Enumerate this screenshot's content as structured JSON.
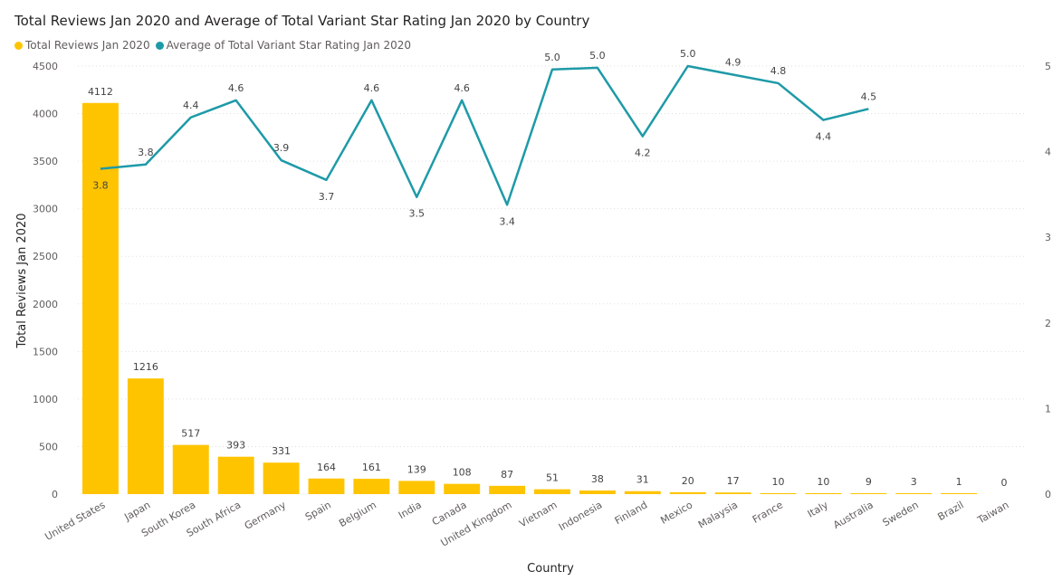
{
  "chart_data": {
    "type": "bar",
    "title": "Total Reviews Jan 2020 and Average of Total Variant Star Rating Jan 2020 by Country",
    "xlabel": "Country",
    "ylabel": "Total Reviews Jan 2020",
    "ylim": [
      0,
      4500
    ],
    "y2lim": [
      0,
      5
    ],
    "yticks": [
      0,
      500,
      1000,
      1500,
      2000,
      2500,
      3000,
      3500,
      4000,
      4500
    ],
    "y2ticks": [
      0,
      1,
      2,
      3,
      4,
      5
    ],
    "legend_position": "top-left",
    "grid": true,
    "categories": [
      "United States",
      "Japan",
      "South Korea",
      "South Africa",
      "Germany",
      "Spain",
      "Belgium",
      "India",
      "Canada",
      "United Kingdom",
      "Vietnam",
      "Indonesia",
      "Finland",
      "Mexico",
      "Malaysia",
      "France",
      "Italy",
      "Australia",
      "Sweden",
      "Brazil",
      "Taiwan"
    ],
    "series": [
      {
        "name": "Total Reviews Jan 2020",
        "type": "bar",
        "color": "#FFC400",
        "values": [
          4112,
          1216,
          517,
          393,
          331,
          164,
          161,
          139,
          108,
          87,
          51,
          38,
          31,
          20,
          17,
          10,
          10,
          9,
          3,
          1,
          0
        ]
      },
      {
        "name": "Average of Total Variant Star Rating Jan 2020",
        "type": "line",
        "color": "#1E9AA7",
        "values": [
          3.8,
          3.85,
          4.4,
          4.6,
          3.9,
          3.67,
          4.6,
          3.47,
          4.6,
          3.38,
          4.96,
          4.98,
          4.18,
          5.0,
          4.9,
          4.8,
          4.37,
          4.5,
          null,
          null,
          null
        ],
        "labels": [
          "3.8",
          "3.8",
          "4.4",
          "4.6",
          "3.9",
          "3.7",
          "4.6",
          "3.5",
          "4.6",
          "3.4",
          "5.0",
          "5.0",
          "4.2",
          "5.0",
          "4.9",
          "4.8",
          "4.4",
          "4.5",
          "",
          "",
          ""
        ]
      }
    ]
  }
}
